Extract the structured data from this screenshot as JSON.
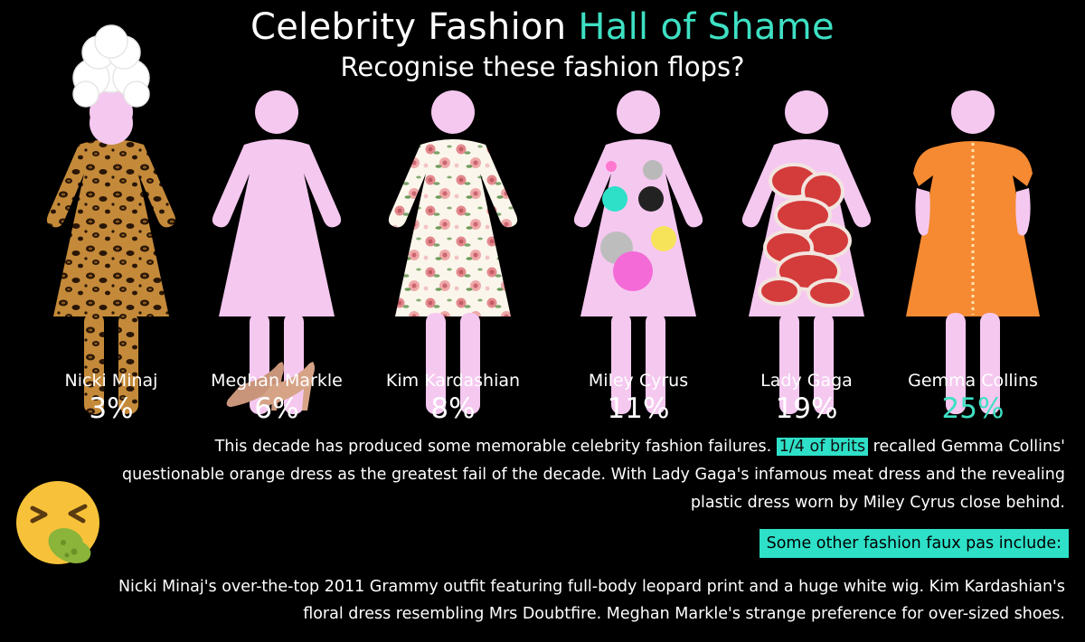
{
  "title_part1": "Celebrity Fashion",
  "title_part2": "Hall of Shame",
  "subtitle": "Recognise these fashion flops?",
  "chart_data": {
    "type": "bar",
    "categories": [
      "Nicki Minaj",
      "Meghan Markle",
      "Kim Kardashian",
      "Miley Cyrus",
      "Lady Gaga",
      "Gemma Collins"
    ],
    "values": [
      3,
      6,
      8,
      11,
      19,
      25
    ],
    "value_labels": [
      "3%",
      "6%",
      "8%",
      "11%",
      "19%",
      "25%"
    ],
    "unit": "%",
    "highlight_category": "Gemma Collins"
  },
  "colors": {
    "background": "#000000",
    "accent": "#3ee0c3",
    "figure": "#f5c8f0"
  },
  "figures": [
    "leopard-print",
    "oversized-heels",
    "floral-dress",
    "plastic-dot-dress",
    "meat-dress",
    "orange-dress"
  ],
  "paragraph1": {
    "before": "This decade has produced some memorable celebrity fashion failures.",
    "highlight": "1/4 of brits",
    "after": "recalled Gemma Collins' questionable orange dress as the greatest fail of the decade. With Lady Gaga's infamous meat dress and the revealing plastic dress worn by Miley Cyrus close behind."
  },
  "callout": "Some other fashion faux pas include:",
  "paragraph2": "Nicki Minaj's over-the-top 2011 Grammy outfit featuring full-body leopard print and a huge white wig. Kim Kardashian's floral dress resembling Mrs Doubtfire. Meghan Markle's strange preference for over-sized shoes.",
  "emoji_icon": "nauseated-face-icon"
}
